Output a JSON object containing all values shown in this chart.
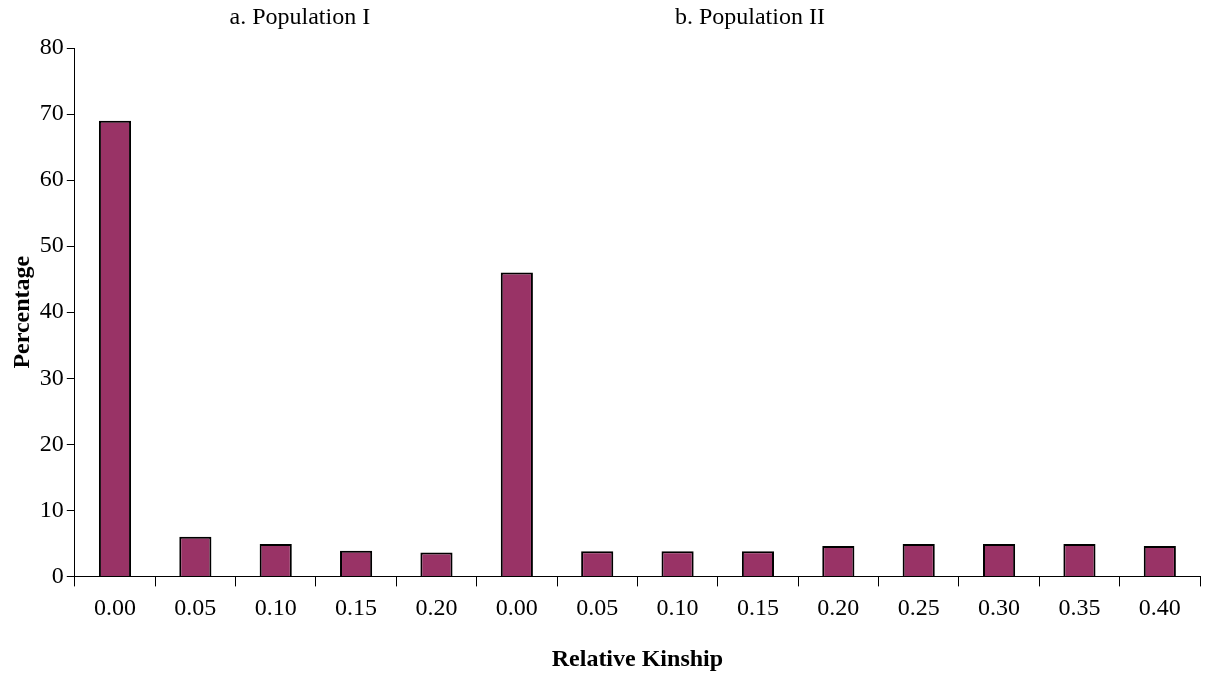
{
  "chart_data": {
    "type": "bar",
    "xlabel": "Relative Kinship",
    "ylabel": "Percentage",
    "annotations": [
      "a. Population I",
      "b. Population II"
    ],
    "categories": [
      "0.00",
      "0.05",
      "0.10",
      "0.15",
      "0.20",
      "0.00",
      "0.05",
      "0.10",
      "0.15",
      "0.20",
      "0.25",
      "0.30",
      "0.35",
      "0.40"
    ],
    "series": [
      {
        "color": "#993366",
        "values": [
          69,
          6,
          4.9,
          3.9,
          3.6,
          46,
          3.8,
          3.8,
          3.8,
          4.6,
          4.9,
          4.9,
          4.9,
          4.6
        ]
      }
    ],
    "ylim": [
      0,
      80
    ],
    "yticks": [
      0,
      10,
      20,
      30,
      40,
      50,
      60,
      70,
      80
    ],
    "grid": false,
    "legend": false
  }
}
